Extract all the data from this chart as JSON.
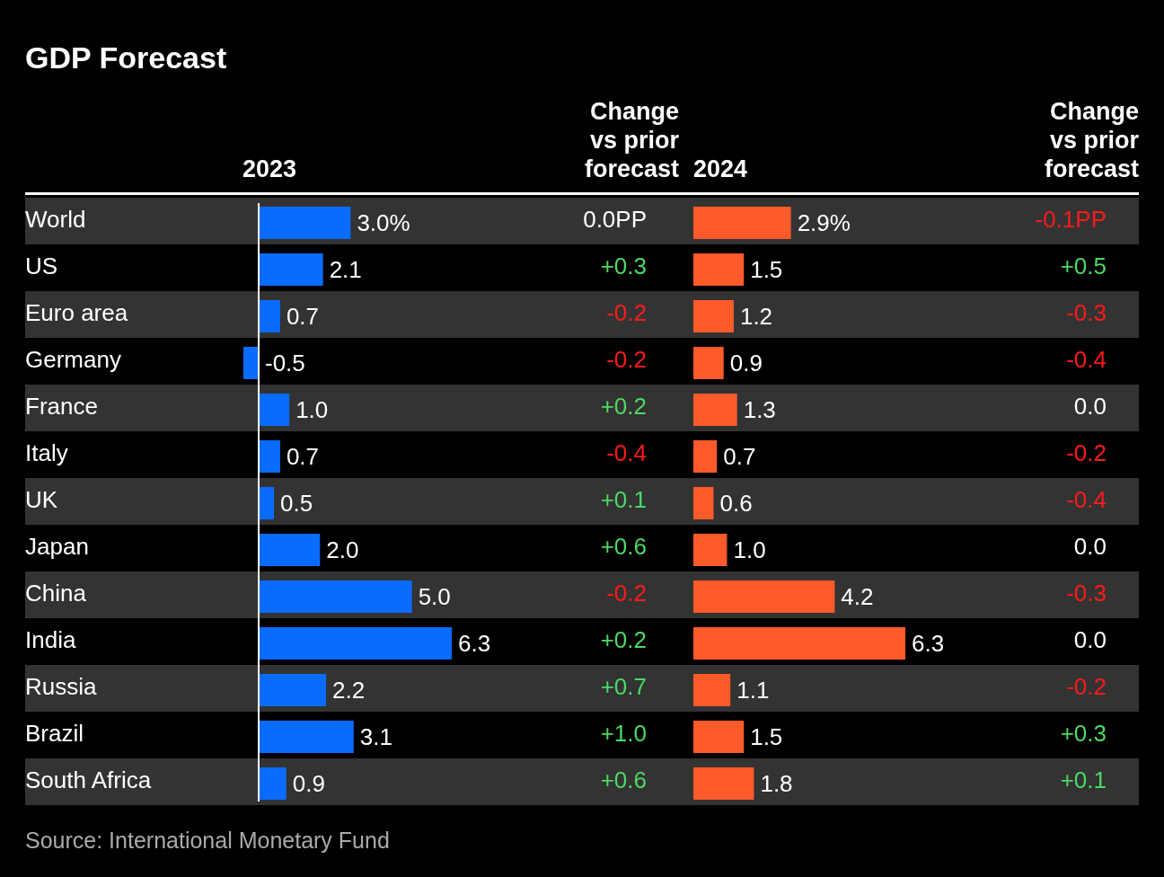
{
  "chart_data": [
    {
      "type": "bar",
      "orientation": "horizontal",
      "title": "GDP Forecast",
      "xlabel": "2023",
      "categories": [
        "World",
        "US",
        "Euro area",
        "Germany",
        "France",
        "Italy",
        "UK",
        "Japan",
        "China",
        "India",
        "Russia",
        "Brazil",
        "South Africa"
      ],
      "values": [
        3.0,
        2.1,
        0.7,
        -0.5,
        1.0,
        0.7,
        0.5,
        2.0,
        5.0,
        6.3,
        2.2,
        3.1,
        0.9
      ],
      "color": "#0a6cff",
      "value_labels": [
        "3.0%",
        "2.1",
        "0.7",
        "-0.5",
        "1.0",
        "0.7",
        "0.5",
        "2.0",
        "5.0",
        "6.3",
        "2.2",
        "3.1",
        "0.9"
      ],
      "tick_labels": "y",
      "annotations": [
        "Source: International Monetary Fund"
      ]
    },
    {
      "type": "other",
      "title": "Change\nvs prior\nforecast",
      "annotations": [
        "0.0PP",
        "+0.3",
        "-0.2",
        "-0.2",
        "+0.2",
        "-0.4",
        "+0.1",
        "+0.6",
        "-0.2",
        "+0.2",
        "+0.7",
        "+1.0",
        "+0.6"
      ],
      "colors": [
        "#ffffff",
        "#4cd964",
        "#ff1a1a",
        "#ff1a1a",
        "#4cd964",
        "#ff1a1a",
        "#4cd964",
        "#4cd964",
        "#ff1a1a",
        "#4cd964",
        "#4cd964",
        "#4cd964",
        "#4cd964"
      ]
    },
    {
      "type": "bar",
      "orientation": "horizontal",
      "xlabel": "2024",
      "categories": [
        null,
        null,
        null,
        null,
        null,
        null,
        null,
        null,
        null,
        null,
        null,
        null,
        null
      ],
      "values": [
        2.9,
        1.5,
        1.2,
        0.9,
        1.3,
        0.7,
        0.6,
        1.0,
        4.2,
        6.3,
        1.1,
        1.5,
        1.8
      ],
      "color": "#ff5a2a",
      "value_labels": [
        "2.9%",
        "1.5",
        "1.2",
        "0.9",
        "1.3",
        "0.7",
        "0.6",
        "1.0",
        "4.2",
        "6.3",
        "1.1",
        "1.5",
        "1.8"
      ]
    },
    {
      "type": "other",
      "title": "Change\nvs prior\nforecast",
      "annotations": [
        "-0.1PP",
        "+0.5",
        "-0.3",
        "-0.4",
        "0.0",
        "-0.2",
        "-0.4",
        "0.0",
        "-0.3",
        "0.0",
        "-0.2",
        "+0.3",
        "+0.1"
      ],
      "colors": [
        "#ff1a1a",
        "#4cd964",
        "#ff1a1a",
        "#ff1a1a",
        "#ffffff",
        "#ff1a1a",
        "#ff1a1a",
        "#ffffff",
        "#ff1a1a",
        "#ffffff",
        "#ff1a1a",
        "#4cd964",
        "#4cd964"
      ]
    }
  ]
}
